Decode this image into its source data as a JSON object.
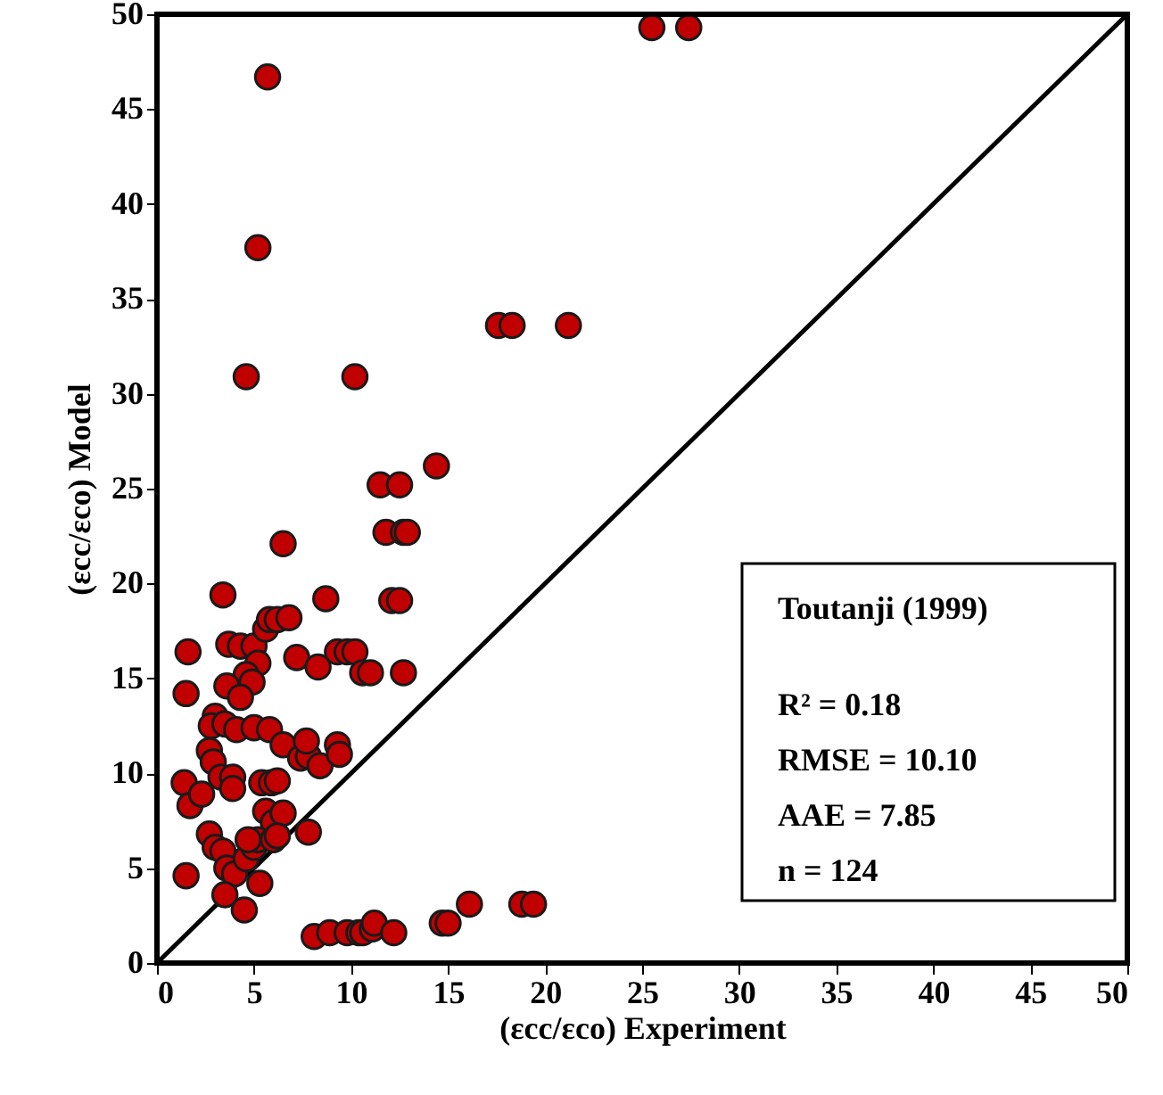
{
  "chart_data": {
    "type": "scatter",
    "xlabel": "(εcc/εco) Experiment",
    "ylabel": "(εcc/εco) Model",
    "xlim": [
      0,
      50
    ],
    "ylim": [
      0,
      50
    ],
    "xticks": [
      0,
      5,
      10,
      15,
      20,
      25,
      30,
      35,
      40,
      45,
      50
    ],
    "yticks": [
      0,
      5,
      10,
      15,
      20,
      25,
      30,
      35,
      40,
      45,
      50
    ],
    "grid": false,
    "annotations": [
      "Toutanji (1999)",
      "R² = 0.18",
      "RMSE = 10.10",
      "AAE = 7.85",
      "n = 124"
    ],
    "series": [
      {
        "marker": "circle",
        "color": "#c00000",
        "x": [
          25.5,
          27.4,
          5.7,
          5.2,
          4.6,
          10.2,
          17.6,
          18.3,
          21.2,
          14.4,
          11.5,
          12.5,
          6.5,
          11.8,
          12.7,
          12.9,
          12.1,
          12.5,
          8.7,
          3.4,
          1.6,
          1.5,
          3.7,
          4.3,
          5.0,
          5.6,
          5.8,
          6.2,
          6.8,
          5.2,
          4.6,
          4.9,
          3.6,
          7.2,
          8.3,
          9.3,
          9.8,
          10.2,
          10.6,
          11.0,
          12.7,
          3.0,
          2.8,
          3.5,
          4.1,
          5.0,
          5.8,
          6.5,
          1.4,
          1.7,
          2.3,
          2.7,
          2.9,
          3.3,
          3.9,
          3.9,
          5.4,
          5.9,
          6.2,
          7.4,
          7.8,
          7.7,
          8.4,
          9.3,
          9.4,
          5.6,
          6.0,
          6.5,
          2.7,
          3.0,
          3.4,
          3.6,
          4.0,
          4.6,
          5.0,
          5.2,
          6.0,
          6.2,
          7.8,
          1.5,
          3.5,
          5.3,
          4.5,
          8.1,
          8.9,
          9.8,
          10.4,
          10.6,
          11.1,
          11.2,
          12.2,
          14.7,
          15.0,
          16.1,
          18.8,
          19.4,
          4.7,
          4.3
        ],
        "values": [
          49.3,
          49.3,
          46.7,
          37.7,
          30.9,
          30.9,
          33.6,
          33.6,
          33.6,
          26.2,
          25.2,
          25.2,
          22.1,
          22.7,
          22.7,
          22.7,
          19.1,
          19.1,
          19.2,
          19.4,
          16.4,
          14.2,
          16.8,
          16.7,
          16.7,
          17.6,
          18.1,
          18.1,
          18.2,
          15.8,
          15.2,
          14.8,
          14.6,
          16.1,
          15.6,
          16.4,
          16.4,
          16.4,
          15.3,
          15.3,
          15.3,
          13.0,
          12.5,
          12.6,
          12.3,
          12.4,
          12.3,
          11.5,
          9.5,
          8.3,
          8.9,
          11.2,
          10.6,
          9.8,
          9.8,
          9.2,
          9.5,
          9.5,
          9.6,
          10.8,
          10.9,
          11.7,
          10.4,
          11.5,
          11.0,
          8.0,
          7.4,
          7.9,
          6.8,
          6.1,
          5.9,
          5.0,
          4.7,
          5.5,
          6.1,
          6.5,
          6.5,
          6.7,
          6.9,
          4.6,
          3.6,
          4.2,
          2.8,
          1.4,
          1.6,
          1.6,
          1.6,
          1.6,
          1.8,
          2.1,
          1.6,
          2.1,
          2.1,
          3.1,
          3.1,
          3.1,
          6.5,
          14.0
        ]
      },
      {
        "type": "line",
        "marker": "none",
        "color": "#000000",
        "x": [
          0,
          50
        ],
        "values": [
          0,
          50
        ]
      }
    ]
  }
}
